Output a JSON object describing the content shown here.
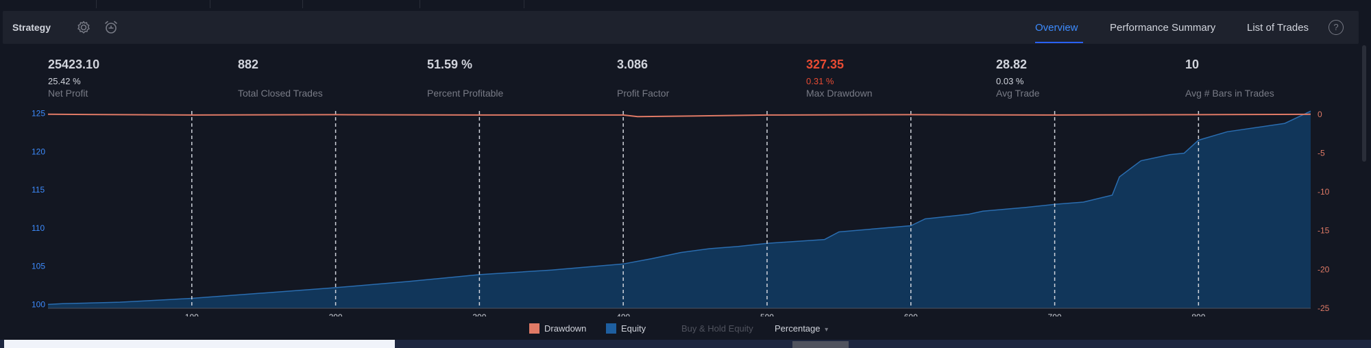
{
  "header": {
    "title": "Strategy",
    "tabs": [
      {
        "label": "Overview",
        "active": true
      },
      {
        "label": "Performance Summary",
        "active": false
      },
      {
        "label": "List of Trades",
        "active": false
      }
    ],
    "help_label": "?",
    "icons": [
      "gear-icon",
      "alarm-add-icon",
      "help-icon"
    ]
  },
  "stats": [
    {
      "value": "25423.10",
      "sub": "25.42 %",
      "label": "Net Profit"
    },
    {
      "value": "882",
      "sub": "",
      "label": "Total Closed Trades"
    },
    {
      "value": "51.59 %",
      "sub": "",
      "label": "Percent Profitable"
    },
    {
      "value": "3.086",
      "sub": "",
      "label": "Profit Factor"
    },
    {
      "value": "327.35",
      "sub": "0.31 %",
      "label": "Max Drawdown",
      "negative": true
    },
    {
      "value": "28.82",
      "sub": "0.03 %",
      "label": "Avg Trade"
    },
    {
      "value": "10",
      "sub": "",
      "label": "Avg # Bars in Trades"
    }
  ],
  "legend": {
    "drawdown": "Drawdown",
    "equity": "Equity",
    "buy_hold": "Buy & Hold Equity",
    "mode": "Percentage",
    "mode_arrow": "▾"
  },
  "colors": {
    "equity": "#1e5a8e",
    "equity_fill": "#11365a",
    "drawdown": "#e07a66",
    "accent": "#3d8bfd",
    "negative": "#e84b33"
  },
  "chart_data": {
    "type": "area",
    "x_ticks": [
      100,
      200,
      300,
      400,
      500,
      600,
      700,
      800
    ],
    "y_left_ticks": [
      100,
      105,
      110,
      115,
      120,
      125
    ],
    "y_right_ticks": [
      0,
      -5,
      -10,
      -15,
      -20,
      -25
    ],
    "xlim": [
      0,
      878
    ],
    "ylim_left": [
      99.5,
      125.5
    ],
    "ylim_right": [
      -25,
      0.6
    ],
    "grid": "vertical dashed at x ticks",
    "series": [
      {
        "name": "Equity",
        "axis": "left",
        "x": [
          0,
          10,
          50,
          100,
          150,
          200,
          250,
          300,
          350,
          400,
          420,
          440,
          460,
          480,
          500,
          540,
          550,
          600,
          610,
          640,
          650,
          680,
          700,
          720,
          740,
          745,
          760,
          780,
          790,
          800,
          820,
          860,
          878
        ],
        "values": [
          100,
          100.1,
          100.3,
          100.8,
          101.5,
          102.2,
          103,
          103.9,
          104.5,
          105.3,
          106,
          106.8,
          107.3,
          107.6,
          108,
          108.5,
          109.5,
          110.3,
          111.2,
          111.8,
          112.2,
          112.7,
          113.1,
          113.4,
          114.3,
          116.7,
          118.8,
          119.6,
          119.8,
          121.5,
          122.6,
          123.7,
          125.3
        ]
      },
      {
        "name": "Drawdown",
        "axis": "right",
        "x": [
          0,
          100,
          200,
          300,
          400,
          410,
          500,
          600,
          700,
          800,
          878
        ],
        "values": [
          0,
          -0.1,
          -0.05,
          -0.1,
          -0.1,
          -0.31,
          -0.1,
          -0.05,
          -0.1,
          -0.05,
          0
        ]
      }
    ]
  }
}
